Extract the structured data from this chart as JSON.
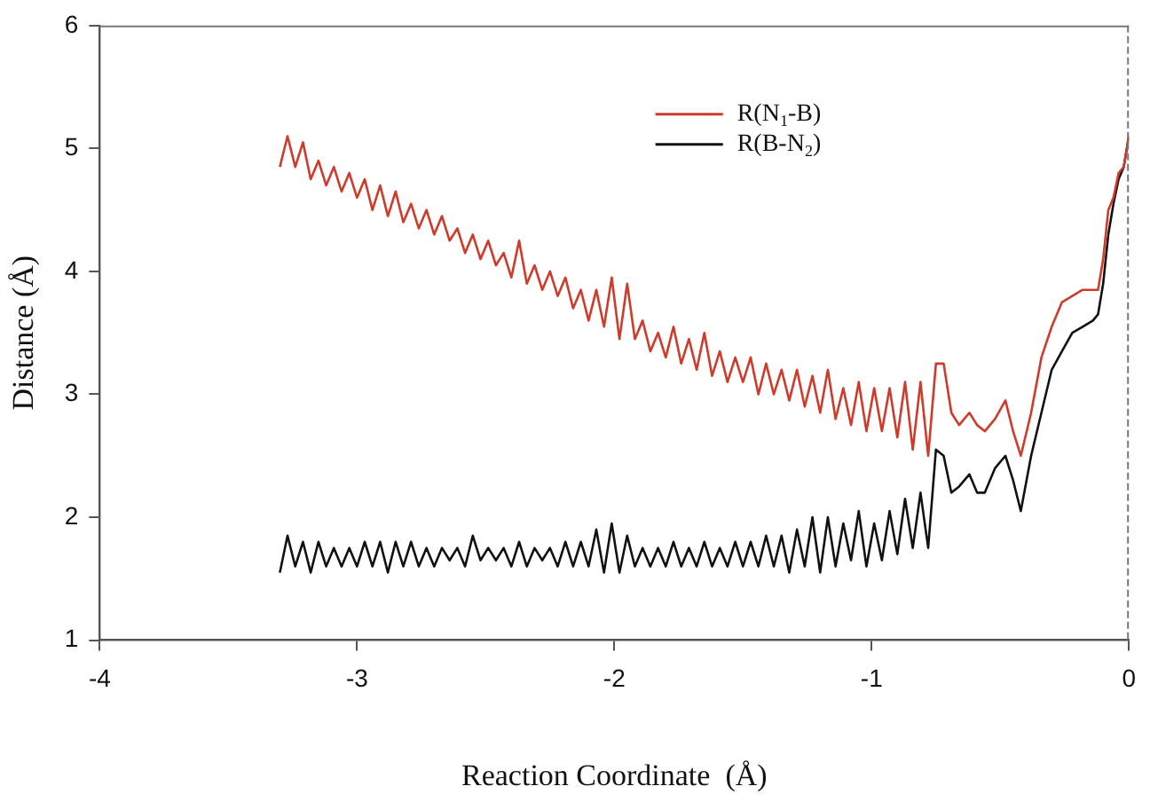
{
  "chart_data": {
    "type": "line",
    "xlabel": "Reaction Coordinate  (Å)",
    "ylabel": "Distance (Å)",
    "x": [
      -3.3,
      -3.27,
      -3.24,
      -3.21,
      -3.18,
      -3.15,
      -3.12,
      -3.09,
      -3.06,
      -3.03,
      -3.0,
      -2.97,
      -2.94,
      -2.91,
      -2.88,
      -2.85,
      -2.82,
      -2.79,
      -2.76,
      -2.73,
      -2.7,
      -2.67,
      -2.64,
      -2.61,
      -2.58,
      -2.55,
      -2.52,
      -2.49,
      -2.46,
      -2.43,
      -2.4,
      -2.37,
      -2.34,
      -2.31,
      -2.28,
      -2.25,
      -2.22,
      -2.19,
      -2.16,
      -2.13,
      -2.1,
      -2.07,
      -2.04,
      -2.01,
      -1.98,
      -1.95,
      -1.92,
      -1.89,
      -1.86,
      -1.83,
      -1.8,
      -1.77,
      -1.74,
      -1.71,
      -1.68,
      -1.65,
      -1.62,
      -1.59,
      -1.56,
      -1.53,
      -1.5,
      -1.47,
      -1.44,
      -1.41,
      -1.38,
      -1.35,
      -1.32,
      -1.29,
      -1.26,
      -1.23,
      -1.2,
      -1.17,
      -1.14,
      -1.11,
      -1.08,
      -1.05,
      -1.02,
      -0.99,
      -0.96,
      -0.93,
      -0.9,
      -0.87,
      -0.84,
      -0.81,
      -0.78,
      -0.75,
      -0.72,
      -0.69,
      -0.66,
      -0.62,
      -0.59,
      -0.56,
      -0.52,
      -0.48,
      -0.45,
      -0.42,
      -0.38,
      -0.34,
      -0.3,
      -0.26,
      -0.22,
      -0.18,
      -0.14,
      -0.12,
      -0.1,
      -0.08,
      -0.06,
      -0.04,
      -0.02,
      0
    ],
    "series": [
      {
        "name": "R(N$_{1}$-B)",
        "color": "#d03a2a",
        "values": [
          4.85,
          5.1,
          4.85,
          5.05,
          4.75,
          4.9,
          4.7,
          4.85,
          4.65,
          4.8,
          4.6,
          4.75,
          4.5,
          4.7,
          4.45,
          4.65,
          4.4,
          4.55,
          4.35,
          4.5,
          4.3,
          4.45,
          4.25,
          4.35,
          4.15,
          4.3,
          4.1,
          4.25,
          4.05,
          4.15,
          3.95,
          4.25,
          3.9,
          4.05,
          3.85,
          4.0,
          3.8,
          3.95,
          3.7,
          3.85,
          3.6,
          3.85,
          3.55,
          3.95,
          3.45,
          3.9,
          3.45,
          3.6,
          3.35,
          3.5,
          3.3,
          3.55,
          3.25,
          3.45,
          3.2,
          3.5,
          3.15,
          3.35,
          3.1,
          3.3,
          3.1,
          3.3,
          3.0,
          3.25,
          3.0,
          3.2,
          2.95,
          3.2,
          2.9,
          3.15,
          2.85,
          3.2,
          2.8,
          3.05,
          2.75,
          3.1,
          2.7,
          3.05,
          2.7,
          3.05,
          2.65,
          3.1,
          2.55,
          3.1,
          2.5,
          3.25,
          3.25,
          2.85,
          2.75,
          2.85,
          2.75,
          2.7,
          2.8,
          2.95,
          2.7,
          2.5,
          2.85,
          3.3,
          3.55,
          3.75,
          3.8,
          3.85,
          3.85,
          3.85,
          4.1,
          4.5,
          4.6,
          4.8,
          4.85,
          5.1
        ]
      },
      {
        "name": "R(B-N$_{2}$)",
        "color": "#111111",
        "values": [
          1.55,
          1.85,
          1.6,
          1.8,
          1.55,
          1.8,
          1.6,
          1.75,
          1.6,
          1.75,
          1.6,
          1.8,
          1.6,
          1.8,
          1.55,
          1.8,
          1.6,
          1.8,
          1.6,
          1.75,
          1.6,
          1.75,
          1.65,
          1.75,
          1.6,
          1.85,
          1.65,
          1.75,
          1.65,
          1.75,
          1.6,
          1.8,
          1.6,
          1.75,
          1.65,
          1.75,
          1.6,
          1.8,
          1.6,
          1.8,
          1.6,
          1.9,
          1.55,
          1.95,
          1.55,
          1.85,
          1.6,
          1.75,
          1.6,
          1.75,
          1.6,
          1.8,
          1.6,
          1.75,
          1.6,
          1.8,
          1.6,
          1.75,
          1.6,
          1.8,
          1.6,
          1.8,
          1.6,
          1.85,
          1.6,
          1.85,
          1.55,
          1.9,
          1.6,
          2.0,
          1.55,
          2.0,
          1.6,
          1.95,
          1.65,
          2.05,
          1.6,
          1.95,
          1.65,
          2.05,
          1.7,
          2.15,
          1.75,
          2.2,
          1.75,
          2.55,
          2.5,
          2.2,
          2.25,
          2.35,
          2.2,
          2.2,
          2.4,
          2.5,
          2.3,
          2.05,
          2.5,
          2.85,
          3.2,
          3.35,
          3.5,
          3.55,
          3.6,
          3.65,
          3.9,
          4.3,
          4.55,
          4.75,
          4.85,
          5.1
        ]
      }
    ],
    "xlim": [
      -4,
      0
    ],
    "xticks": [
      -4,
      -3,
      -2,
      -1,
      0
    ],
    "ylim": [
      1,
      6
    ],
    "yticks": [
      1,
      2,
      3,
      4,
      5,
      6
    ],
    "grid": false,
    "legend": "top right",
    "marker": "none",
    "line_style": "solid"
  }
}
